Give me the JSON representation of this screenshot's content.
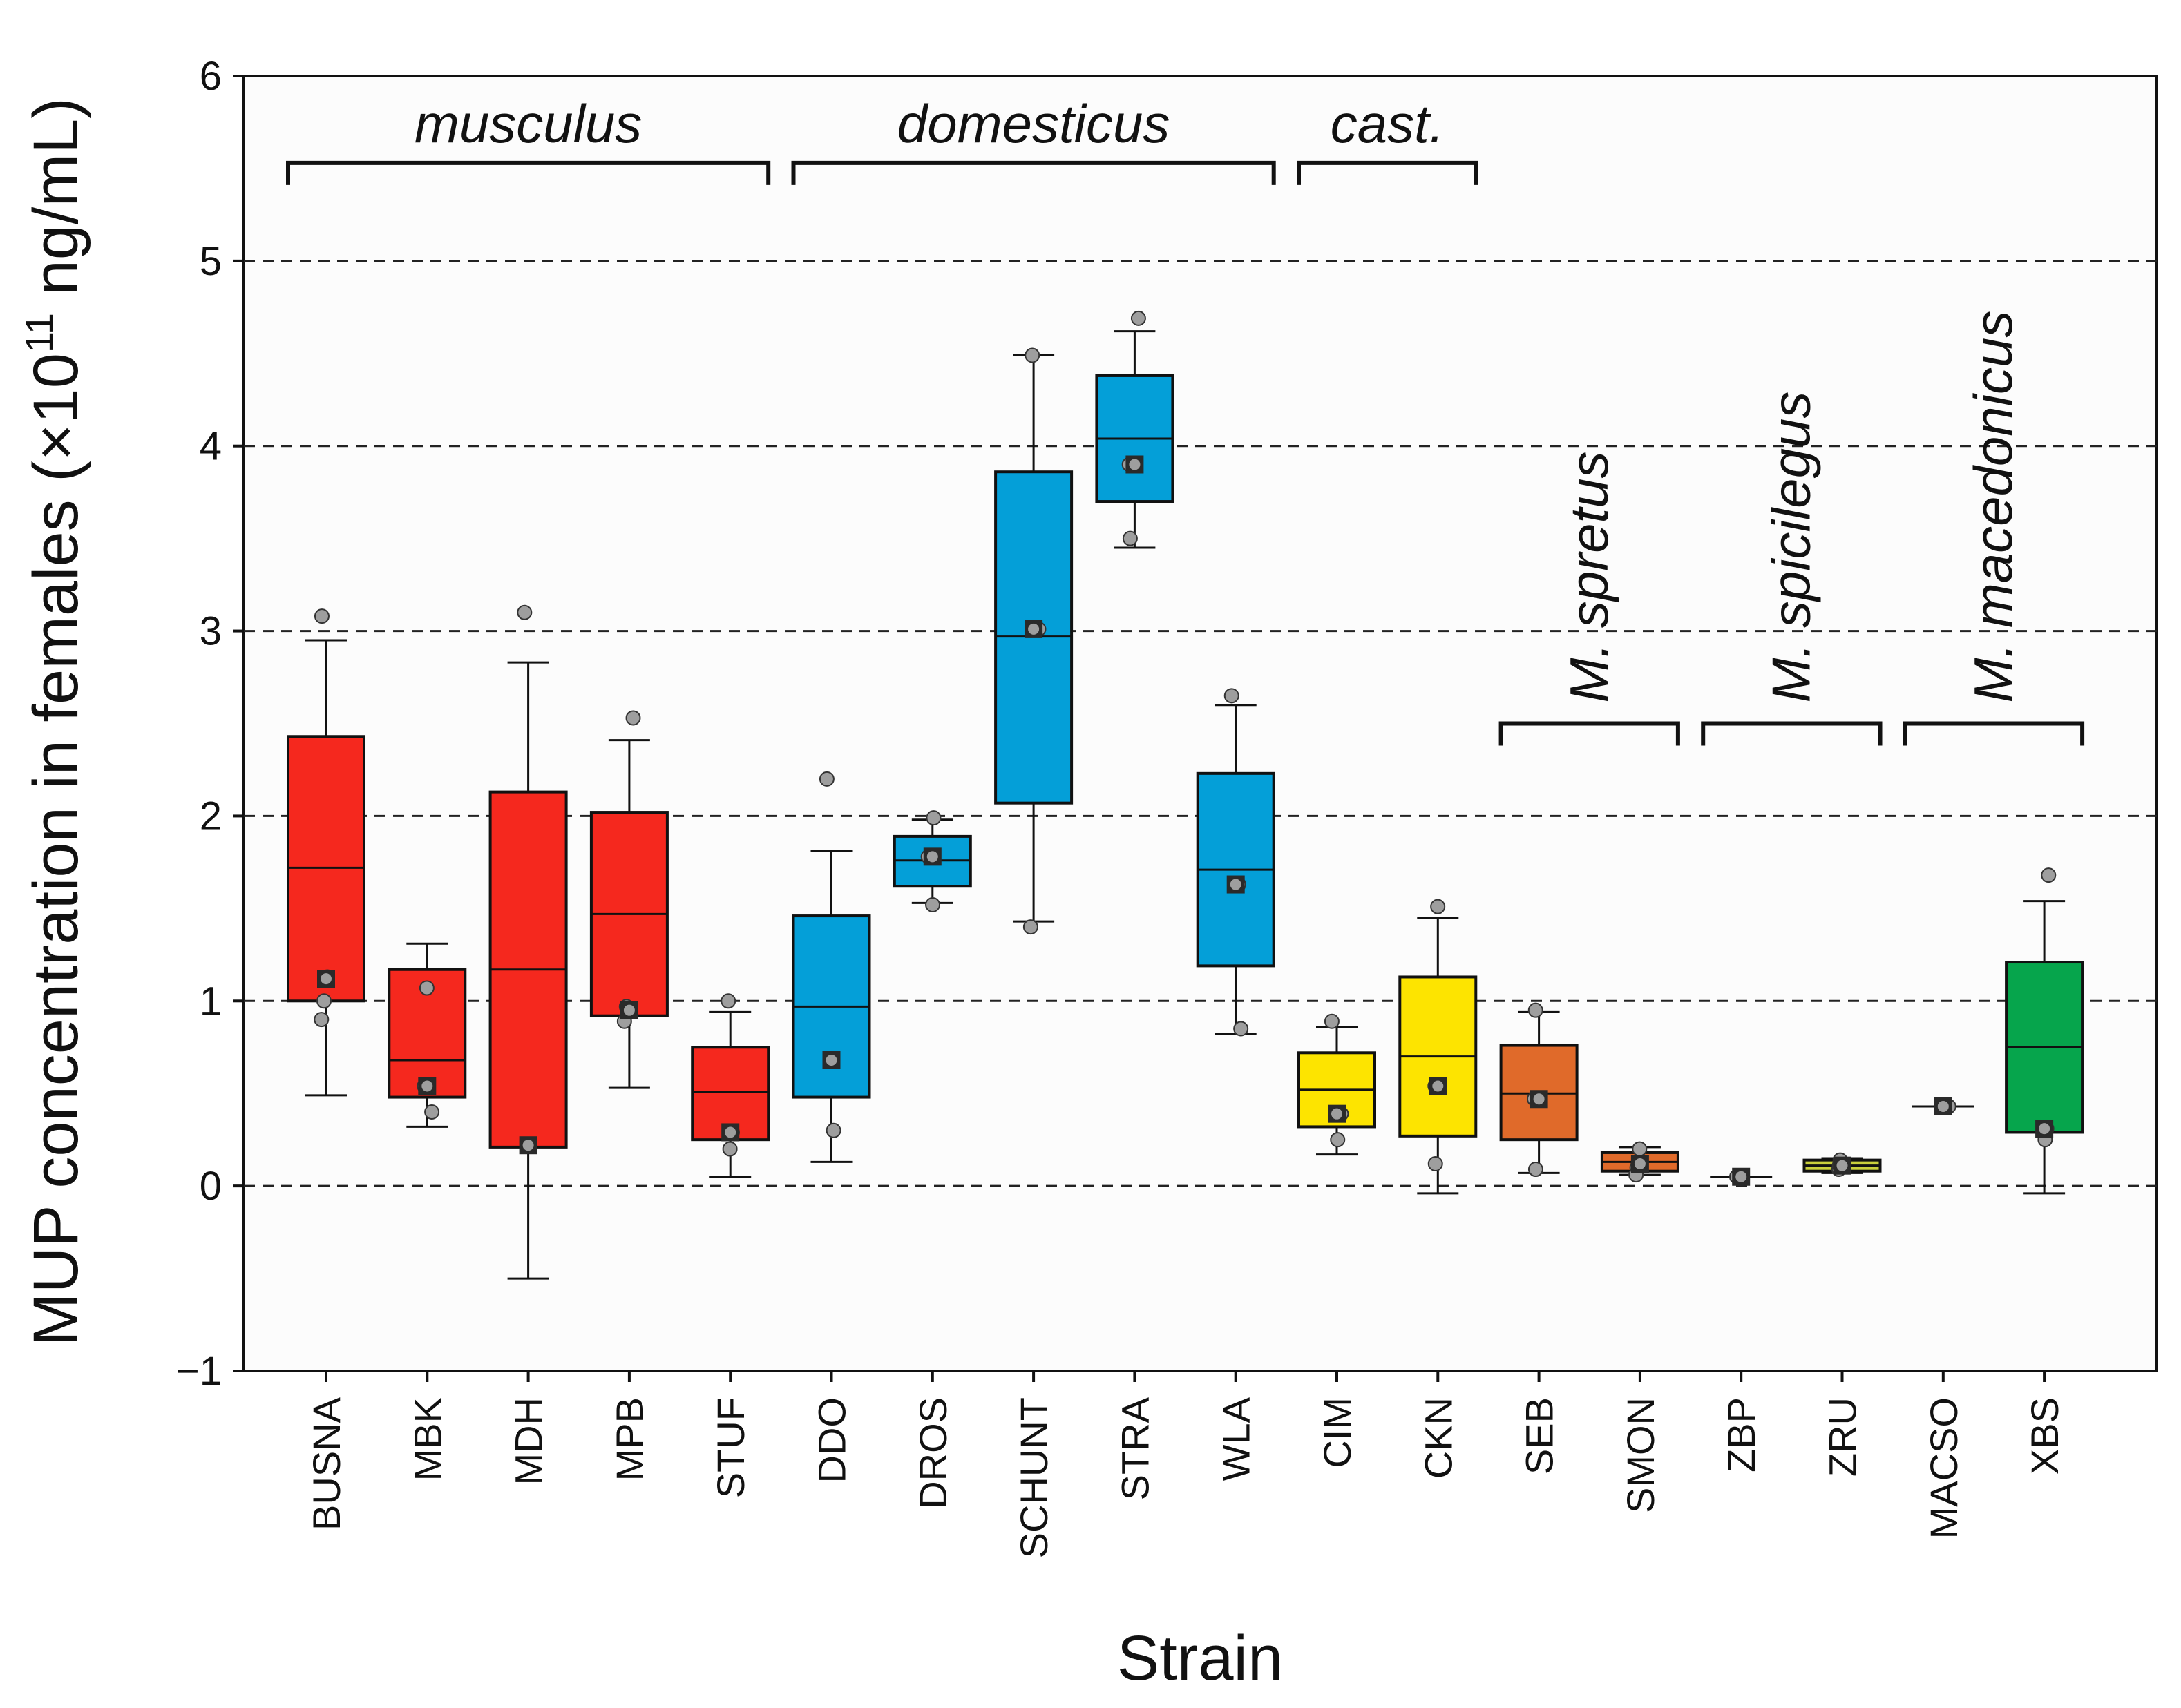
{
  "chart_data": {
    "type": "box",
    "title": "",
    "xlabel": "Strain",
    "ylabel": "MUP concentration in females (×10",
    "ylabel_exponent": "11",
    "ylabel_unit": " ng/mL)",
    "ylim": [
      -1,
      6
    ],
    "yticks": [
      -1,
      0,
      1,
      2,
      3,
      4,
      5,
      6
    ],
    "ytick_labels": [
      "−1",
      "0",
      "1",
      "2",
      "3",
      "4",
      "5",
      "6"
    ],
    "grid": "dashed horizontal lines at 0, 1, 2, 3, 4, 5",
    "legend": "none",
    "colors": {
      "red": "#f5281e",
      "blue": "#049fd8",
      "yellow": "#fde400",
      "orange": "#e06a2a",
      "olive": "#c9cf3c",
      "green": "#06a54c",
      "grey": "#c8c8c8",
      "grid": "#222222",
      "points": "#9e9e9e"
    },
    "groups": [
      {
        "label": "musculus",
        "first": 0,
        "last": 4,
        "orientation": "horizontal",
        "y": 5.53
      },
      {
        "label": "domesticus",
        "first": 5,
        "last": 9,
        "orientation": "horizontal",
        "y": 5.53
      },
      {
        "label": "cast.",
        "first": 10,
        "last": 11,
        "orientation": "horizontal",
        "y": 5.53
      },
      {
        "label": "M. spretus",
        "first": 12,
        "last": 13,
        "orientation": "vertical",
        "y": 2.5
      },
      {
        "label": "M. spicilegus",
        "first": 14,
        "last": 15,
        "orientation": "vertical",
        "y": 2.5
      },
      {
        "label": "M. macedonicus",
        "first": 16,
        "last": 17,
        "orientation": "vertical",
        "y": 2.5
      }
    ],
    "strains": [
      {
        "name": "BUSNA",
        "color": "#f5281e",
        "q1": 1.0,
        "median": 1.72,
        "q3": 2.43,
        "whisker_low": 0.49,
        "whisker_high": 2.95,
        "mean": 1.12,
        "points": [
          3.08,
          0.9,
          1.0,
          1.13
        ]
      },
      {
        "name": "MBK",
        "color": "#f5281e",
        "q1": 0.48,
        "median": 0.68,
        "q3": 1.17,
        "whisker_low": 0.32,
        "whisker_high": 1.31,
        "mean": 0.54,
        "points": [
          1.07,
          0.4,
          0.54
        ]
      },
      {
        "name": "MDH",
        "color": "#f5281e",
        "q1": 0.21,
        "median": 1.17,
        "q3": 2.13,
        "whisker_low": -0.5,
        "whisker_high": 2.83,
        "mean": 0.22,
        "points": [
          3.1,
          0.22,
          0.22
        ]
      },
      {
        "name": "MPB",
        "color": "#f5281e",
        "q1": 0.92,
        "median": 1.47,
        "q3": 2.02,
        "whisker_low": 0.53,
        "whisker_high": 2.41,
        "mean": 0.95,
        "points": [
          2.53,
          0.89,
          0.97
        ]
      },
      {
        "name": "STUF",
        "color": "#f5281e",
        "q1": 0.25,
        "median": 0.51,
        "q3": 0.75,
        "whisker_low": 0.05,
        "whisker_high": 0.94,
        "mean": 0.29,
        "points": [
          1.0,
          0.2,
          0.29
        ]
      },
      {
        "name": "DDO",
        "color": "#049fd8",
        "q1": 0.48,
        "median": 0.97,
        "q3": 1.46,
        "whisker_low": 0.13,
        "whisker_high": 1.81,
        "mean": 0.68,
        "points": [
          2.2,
          0.3,
          0.68
        ]
      },
      {
        "name": "DROS",
        "color": "#049fd8",
        "q1": 1.62,
        "median": 1.76,
        "q3": 1.89,
        "whisker_low": 1.53,
        "whisker_high": 1.98,
        "mean": 1.78,
        "points": [
          1.99,
          1.52,
          1.78
        ]
      },
      {
        "name": "SCHUNT",
        "color": "#049fd8",
        "q1": 2.07,
        "median": 2.97,
        "q3": 3.86,
        "whisker_low": 1.43,
        "whisker_high": 4.49,
        "mean": 3.01,
        "points": [
          4.49,
          1.4,
          3.01
        ]
      },
      {
        "name": "STRA",
        "color": "#049fd8",
        "q1": 3.7,
        "median": 4.04,
        "q3": 4.38,
        "whisker_low": 3.45,
        "whisker_high": 4.62,
        "mean": 3.9,
        "points": [
          4.69,
          3.5,
          3.9
        ]
      },
      {
        "name": "WLA",
        "color": "#049fd8",
        "q1": 1.19,
        "median": 1.71,
        "q3": 2.23,
        "whisker_low": 0.82,
        "whisker_high": 2.6,
        "mean": 1.63,
        "points": [
          2.65,
          0.85,
          1.63
        ]
      },
      {
        "name": "CIM",
        "color": "#fde400",
        "q1": 0.32,
        "median": 0.52,
        "q3": 0.72,
        "whisker_low": 0.17,
        "whisker_high": 0.86,
        "mean": 0.39,
        "points": [
          0.89,
          0.25,
          0.39
        ]
      },
      {
        "name": "CKN",
        "color": "#fde400",
        "q1": 0.27,
        "median": 0.7,
        "q3": 1.13,
        "whisker_low": -0.04,
        "whisker_high": 1.45,
        "mean": 0.54,
        "points": [
          1.51,
          0.12,
          0.54
        ]
      },
      {
        "name": "SEB",
        "color": "#e06a2a",
        "q1": 0.25,
        "median": 0.5,
        "q3": 0.76,
        "whisker_low": 0.07,
        "whisker_high": 0.94,
        "mean": 0.47,
        "points": [
          0.95,
          0.09,
          0.47
        ]
      },
      {
        "name": "SMON",
        "color": "#e06a2a",
        "q1": 0.08,
        "median": 0.13,
        "q3": 0.18,
        "whisker_low": 0.06,
        "whisker_high": 0.21,
        "mean": 0.12,
        "points": [
          0.2,
          0.1,
          0.06
        ]
      },
      {
        "name": "ZBP",
        "color": "#c8c8c8",
        "q1": 0.05,
        "median": 0.05,
        "q3": 0.05,
        "whisker_low": 0.05,
        "whisker_high": 0.05,
        "mean": 0.05,
        "points": [
          0.05,
          0.05
        ]
      },
      {
        "name": "ZRU",
        "color": "#c9cf3c",
        "q1": 0.08,
        "median": 0.11,
        "q3": 0.14,
        "whisker_low": 0.07,
        "whisker_high": 0.15,
        "mean": 0.11,
        "points": [
          0.14,
          0.09,
          0.11
        ]
      },
      {
        "name": "MACSO",
        "color": "#c8c8c8",
        "q1": 0.43,
        "median": 0.43,
        "q3": 0.43,
        "whisker_low": 0.43,
        "whisker_high": 0.43,
        "mean": 0.43,
        "points": [
          0.43,
          0.43
        ]
      },
      {
        "name": "XBS",
        "color": "#06a54c",
        "q1": 0.29,
        "median": 0.75,
        "q3": 1.21,
        "whisker_low": -0.04,
        "whisker_high": 1.54,
        "mean": 0.31,
        "points": [
          1.68,
          0.25,
          0.31
        ]
      }
    ]
  }
}
